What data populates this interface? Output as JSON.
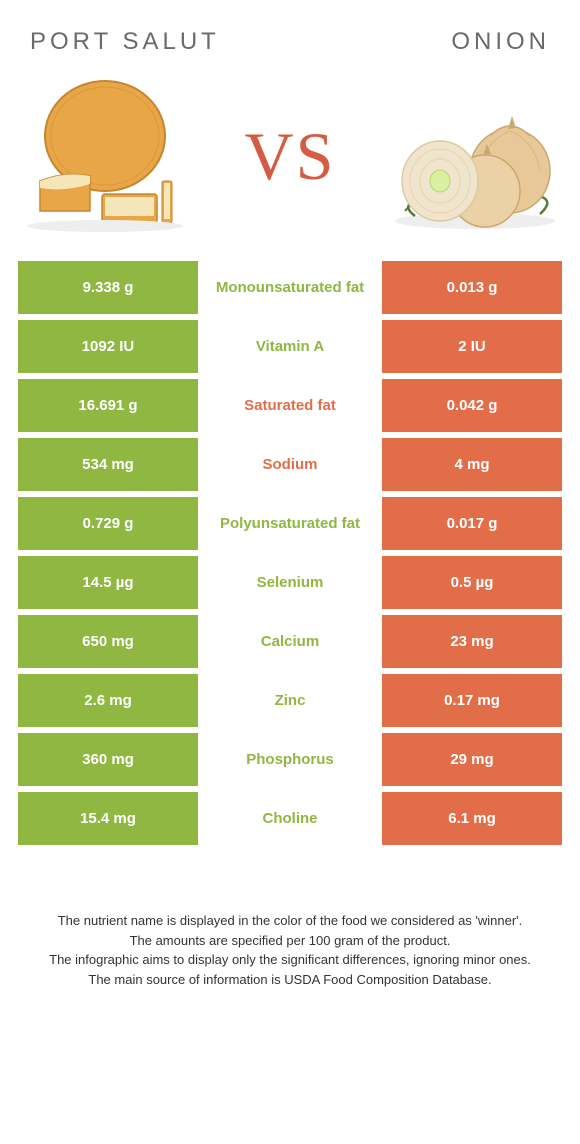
{
  "left_food": "Port Salut",
  "right_food": "Onion",
  "vs": "VS",
  "colors": {
    "left_bg": "#8fb741",
    "right_bg": "#e26e49",
    "left_text": "#8fb741",
    "right_text": "#e26e49",
    "header_text": "#6a6a6a"
  },
  "rows": [
    {
      "left": "9.338 g",
      "mid": "Monounsaturated fat",
      "right": "0.013 g",
      "winner": "left"
    },
    {
      "left": "1092 IU",
      "mid": "Vitamin A",
      "right": "2 IU",
      "winner": "left"
    },
    {
      "left": "16.691 g",
      "mid": "Saturated fat",
      "right": "0.042 g",
      "winner": "right"
    },
    {
      "left": "534 mg",
      "mid": "Sodium",
      "right": "4 mg",
      "winner": "right"
    },
    {
      "left": "0.729 g",
      "mid": "Polyunsaturated fat",
      "right": "0.017 g",
      "winner": "left"
    },
    {
      "left": "14.5 µg",
      "mid": "Selenium",
      "right": "0.5 µg",
      "winner": "left"
    },
    {
      "left": "650 mg",
      "mid": "Calcium",
      "right": "23 mg",
      "winner": "left"
    },
    {
      "left": "2.6 mg",
      "mid": "Zinc",
      "right": "0.17 mg",
      "winner": "left"
    },
    {
      "left": "360 mg",
      "mid": "Phosphorus",
      "right": "29 mg",
      "winner": "left"
    },
    {
      "left": "15.4 mg",
      "mid": "Choline",
      "right": "6.1 mg",
      "winner": "left"
    }
  ],
  "footnotes": [
    "The nutrient name is displayed in the color of the food we considered as 'winner'.",
    "The amounts are specified per 100 gram of the product.",
    "The infographic aims to display only the significant differences, ignoring minor ones.",
    "The main source of information is USDA Food Composition Database."
  ]
}
